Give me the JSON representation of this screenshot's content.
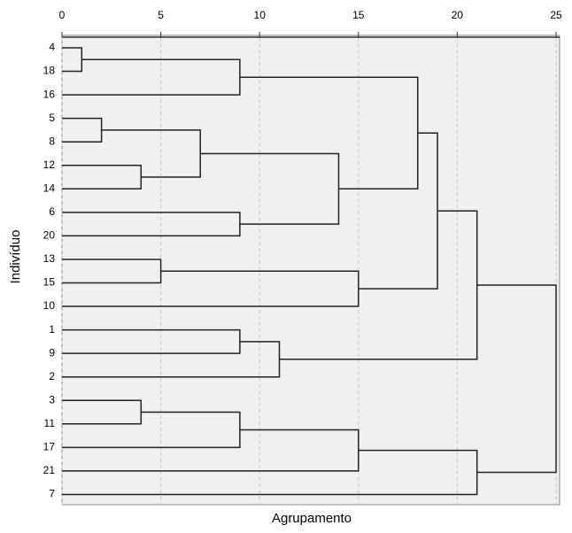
{
  "chart_data": {
    "type": "dendrogram",
    "categories": [
      "4",
      "18",
      "16",
      "5",
      "8",
      "12",
      "14",
      "6",
      "20",
      "13",
      "15",
      "10",
      "1",
      "9",
      "2",
      "3",
      "11",
      "17",
      "21",
      "7"
    ],
    "merges": [
      [
        0,
        1,
        1
      ],
      [
        20,
        2,
        9
      ],
      [
        3,
        4,
        2
      ],
      [
        5,
        6,
        4
      ],
      [
        22,
        23,
        7
      ],
      [
        7,
        8,
        9
      ],
      [
        24,
        25,
        14
      ],
      [
        21,
        26,
        18
      ],
      [
        9,
        10,
        5
      ],
      [
        28,
        11,
        15
      ],
      [
        27,
        29,
        19
      ],
      [
        12,
        13,
        9
      ],
      [
        31,
        14,
        11
      ],
      [
        30,
        32,
        21
      ],
      [
        15,
        16,
        4
      ],
      [
        34,
        17,
        9
      ],
      [
        35,
        18,
        15
      ],
      [
        36,
        19,
        21
      ],
      [
        33,
        37,
        25
      ]
    ],
    "xlim": [
      0,
      25
    ],
    "xticks": [
      0,
      5,
      10,
      15,
      20,
      25
    ],
    "grid": true,
    "xlabel": "Agrupamento",
    "ylabel": "Indivíduo"
  }
}
